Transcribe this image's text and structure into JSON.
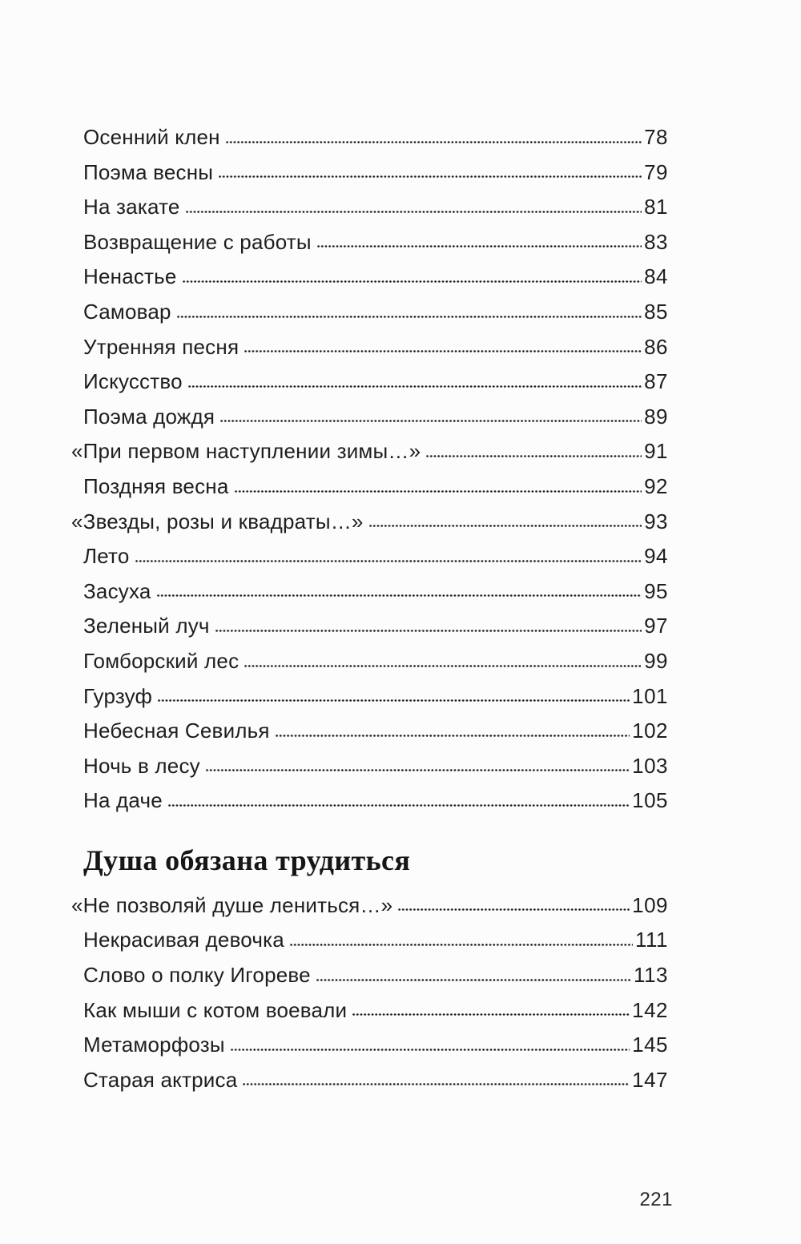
{
  "page": {
    "folio": "221"
  },
  "colors": {
    "ink": "#1e1e1e",
    "paper": "#fcfcfc"
  },
  "toc": {
    "sections": [
      {
        "heading": "",
        "entries": [
          {
            "title": "Осенний клен",
            "page": "78"
          },
          {
            "title": "Поэма весны",
            "page": "79"
          },
          {
            "title": "На закате",
            "page": "81"
          },
          {
            "title": "Возвращение с работы",
            "page": "83"
          },
          {
            "title": "Ненастье",
            "page": "84"
          },
          {
            "title": "Самовар",
            "page": "85"
          },
          {
            "title": "Утренняя песня",
            "page": "86"
          },
          {
            "title": "Искусство",
            "page": "87"
          },
          {
            "title": "Поэма дождя",
            "page": "89"
          },
          {
            "title": "«При первом наступлении зимы…»",
            "page": "91"
          },
          {
            "title": "Поздняя весна",
            "page": "92"
          },
          {
            "title": "«Звезды, розы и квадраты…»",
            "page": "93"
          },
          {
            "title": "Лето",
            "page": "94"
          },
          {
            "title": "Засуха",
            "page": "95"
          },
          {
            "title": "Зеленый луч",
            "page": "97"
          },
          {
            "title": "Гомборский лес",
            "page": "99"
          },
          {
            "title": "Гурзуф",
            "page": "101"
          },
          {
            "title": "Небесная Севилья",
            "page": "102"
          },
          {
            "title": "Ночь в лесу",
            "page": "103"
          },
          {
            "title": "На даче",
            "page": "105"
          }
        ]
      },
      {
        "heading": "Душа обязана трудиться",
        "entries": [
          {
            "title": "«Не позволяй душе лениться…»",
            "page": "109"
          },
          {
            "title": "Некрасивая девочка",
            "page": "111"
          },
          {
            "title": "Слово о полку Игореве",
            "page": "113"
          },
          {
            "title": "Как мыши с котом воевали",
            "page": "142"
          },
          {
            "title": "Метаморфозы",
            "page": "145"
          },
          {
            "title": "Старая актриса",
            "page": "147"
          }
        ]
      }
    ]
  }
}
